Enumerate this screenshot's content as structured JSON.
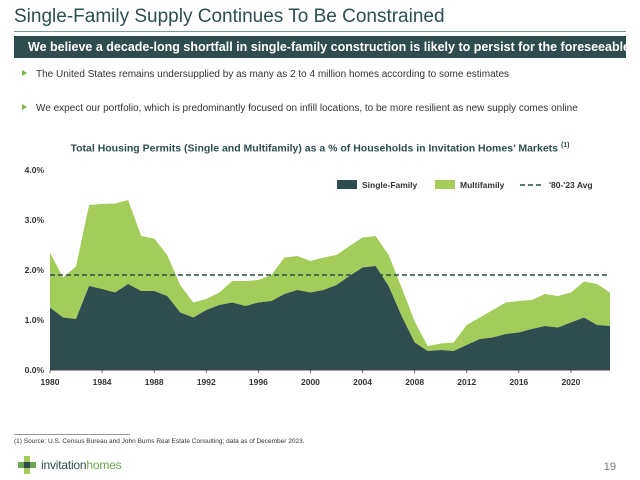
{
  "slide": {
    "title": "Single-Family Supply Continues To Be Constrained",
    "banner": "We believe a decade-long shortfall in single-family construction is likely to persist for the foreseeable future",
    "bullets": [
      "The United States remains undersupplied by as many as 2 to 4 million homes according to some estimates",
      "We expect our portfolio, which is predominantly focused on infill locations, to be more resilient as new supply comes online"
    ],
    "footnote": "(1) Source: U.S. Census Bureau and John Burns Real Estate Consulting; data as of December 2023.",
    "logo_part1": "invitation",
    "logo_part2": "homes",
    "page_number": "19"
  },
  "colors": {
    "single_family": "#2f4d4f",
    "multifamily": "#a3cc5a",
    "average_line": "#2f4d4f",
    "banner": "#2f4d4f",
    "accent": "#7cb342"
  },
  "chart_data": {
    "type": "area",
    "title": "Total Housing Permits (Single and Multifamily) as a % of Households in Invitation Homes’ Markets",
    "title_superscript": "(1)",
    "xlabel": "",
    "ylabel": "",
    "x": [
      1980,
      1981,
      1982,
      1983,
      1984,
      1985,
      1986,
      1987,
      1988,
      1989,
      1990,
      1991,
      1992,
      1993,
      1994,
      1995,
      1996,
      1997,
      1998,
      1999,
      2000,
      2001,
      2002,
      2003,
      2004,
      2005,
      2006,
      2007,
      2008,
      2009,
      2010,
      2011,
      2012,
      2013,
      2014,
      2015,
      2016,
      2017,
      2018,
      2019,
      2020,
      2021,
      2022,
      2023
    ],
    "x_ticks": [
      1980,
      1984,
      1988,
      1992,
      1996,
      2000,
      2004,
      2008,
      2012,
      2016,
      2020
    ],
    "ylim": [
      0,
      4.0
    ],
    "y_ticks": [
      0,
      1.0,
      2.0,
      3.0,
      4.0
    ],
    "y_tick_labels": [
      "0.0%",
      "1.0%",
      "2.0%",
      "3.0%",
      "4.0%"
    ],
    "stacked": true,
    "series": [
      {
        "name": "Single-Family",
        "values": [
          1.25,
          1.05,
          1.02,
          1.68,
          1.62,
          1.55,
          1.72,
          1.58,
          1.58,
          1.48,
          1.15,
          1.05,
          1.2,
          1.3,
          1.35,
          1.28,
          1.35,
          1.38,
          1.52,
          1.6,
          1.55,
          1.6,
          1.7,
          1.88,
          2.05,
          2.08,
          1.68,
          1.08,
          0.55,
          0.38,
          0.4,
          0.38,
          0.5,
          0.62,
          0.65,
          0.72,
          0.75,
          0.82,
          0.88,
          0.85,
          0.95,
          1.05,
          0.9,
          0.88
        ]
      },
      {
        "name": "Multifamily",
        "values": [
          1.1,
          0.8,
          1.05,
          1.62,
          1.7,
          1.78,
          1.68,
          1.1,
          1.05,
          0.82,
          0.55,
          0.3,
          0.22,
          0.25,
          0.43,
          0.5,
          0.45,
          0.52,
          0.73,
          0.68,
          0.63,
          0.65,
          0.6,
          0.6,
          0.6,
          0.6,
          0.62,
          0.57,
          0.42,
          0.1,
          0.13,
          0.17,
          0.4,
          0.43,
          0.55,
          0.63,
          0.63,
          0.58,
          0.64,
          0.63,
          0.6,
          0.72,
          0.82,
          0.67
        ]
      },
      {
        "name": "'80-'23 Avg",
        "line_value": 1.9,
        "style": "dashed"
      }
    ],
    "legend_position": "top-right",
    "grid": false
  }
}
